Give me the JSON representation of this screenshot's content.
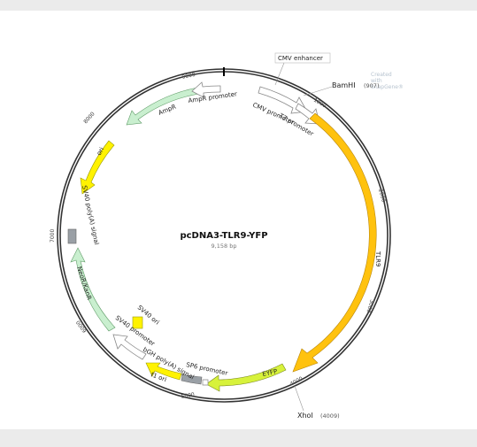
{
  "watermark": "Created with SnapGene®",
  "plasmid": {
    "name": "pcDNA3-TLR9-YFP",
    "size_label": "9,158 bp"
  },
  "features": [
    {
      "id": "cmv-enhancer",
      "label": "CMV enhancer",
      "color": "#ffffff"
    },
    {
      "id": "cmv-promoter",
      "label": "CMV promoter",
      "color": "#ffffff"
    },
    {
      "id": "t7-promoter",
      "label": "T7 promoter",
      "color": "#ffffff"
    },
    {
      "id": "tlr9",
      "label": "TLR9",
      "color": "#ffc20e"
    },
    {
      "id": "eyfp",
      "label": "EYFP",
      "color": "#d7f23b"
    },
    {
      "id": "sp6-promoter",
      "label": "SP6 promoter",
      "color": "#ffffff"
    },
    {
      "id": "bgh-polya",
      "label": "bGH poly(A) signal",
      "color": "#9aa0a6"
    },
    {
      "id": "f1-ori",
      "label": "f1 ori",
      "color": "#fff200"
    },
    {
      "id": "sv40-promoter",
      "label": "SV40 promoter",
      "color": "#ffffff"
    },
    {
      "id": "sv40-ori",
      "label": "SV40 ori",
      "color": "#fff200"
    },
    {
      "id": "neor-kanr",
      "label": "NeoR/KanR",
      "color": "#c9efcf"
    },
    {
      "id": "sv40-polya",
      "label": "SV40 poly(A) signal",
      "color": "#9aa0a6"
    },
    {
      "id": "ori",
      "label": "ori",
      "color": "#fff200"
    },
    {
      "id": "ampr",
      "label": "AmpR",
      "color": "#c9efcf"
    },
    {
      "id": "ampr-promoter",
      "label": "AmpR promoter",
      "color": "#ffffff"
    }
  ],
  "restriction_sites": [
    {
      "name": "BamHI",
      "position": "(907)"
    },
    {
      "name": "XhoI",
      "position": "(4009)"
    }
  ],
  "ticks": [
    "1000",
    "2000",
    "3000",
    "4000",
    "5000",
    "6000",
    "7000",
    "8000",
    "9000"
  ]
}
